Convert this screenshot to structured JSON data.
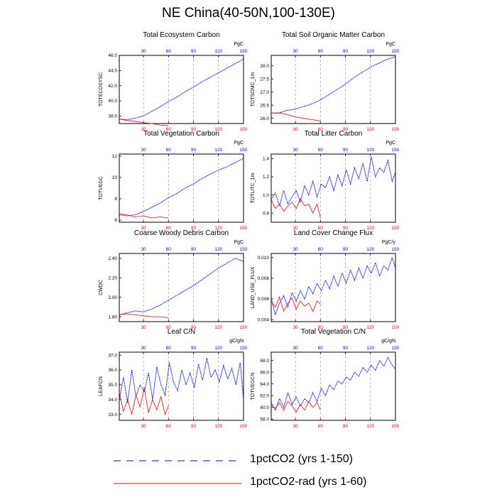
{
  "figure": {
    "title": "NE China(40-50N,100-130E)"
  },
  "colors": {
    "series1": "#0000ff",
    "series2": "#ff0000",
    "grid": "#888888"
  },
  "legend": {
    "entries": [
      {
        "label": "1pctCO2 (yrs 1-150)",
        "style": "dashed",
        "color": "#0000ff"
      },
      {
        "label": "1pctCO2-rad (yrs 1-60)",
        "style": "solid",
        "color": "#ff0000"
      }
    ]
  },
  "chart_data": [
    {
      "type": "line",
      "title": "Total Ecosystem Carbon",
      "ylabel": "TOTECOSYSC",
      "unit": "PgC",
      "xlim": [
        1,
        150
      ],
      "ylim": [
        37,
        46
      ],
      "yticks": [
        "38.0",
        "40.0",
        "42.0",
        "44.0",
        "46.0"
      ],
      "top_ticks": [
        "30",
        "60",
        "90",
        "120",
        "150"
      ],
      "bottom_ticks": [
        "30",
        "60",
        "90",
        "120",
        "150"
      ],
      "series": [
        {
          "x": [
            1,
            10,
            20,
            30,
            40,
            50,
            60,
            70,
            80,
            90,
            100,
            110,
            120,
            130,
            140,
            150
          ],
          "values": [
            37.6,
            37.5,
            37.7,
            38.0,
            38.6,
            39.2,
            39.9,
            40.5,
            41.2,
            41.8,
            42.5,
            43.1,
            43.7,
            44.3,
            44.9,
            45.5
          ]
        },
        {
          "x": [
            1,
            10,
            20,
            30,
            40,
            50,
            60
          ],
          "values": [
            37.6,
            37.4,
            37.3,
            37.1,
            37.0,
            36.8,
            36.7
          ]
        }
      ]
    },
    {
      "type": "line",
      "title": "Total Soil Organic Matter Carbon",
      "ylabel": "TOTSOMC_1m",
      "unit": "PgC",
      "xlim": [
        1,
        150
      ],
      "ylim": [
        25.8,
        28.4
      ],
      "yticks": [
        "26.0",
        "26.5",
        "27.0",
        "27.5",
        "28.0"
      ],
      "top_ticks": [
        "30",
        "60",
        "90",
        "120",
        "150"
      ],
      "bottom_ticks": [
        "30",
        "60",
        "90",
        "120",
        "150"
      ],
      "series": [
        {
          "x": [
            1,
            10,
            20,
            30,
            40,
            50,
            60,
            70,
            80,
            90,
            100,
            110,
            120,
            130,
            140,
            150
          ],
          "values": [
            26.2,
            26.2,
            26.3,
            26.35,
            26.45,
            26.55,
            26.7,
            26.9,
            27.1,
            27.3,
            27.55,
            27.75,
            27.95,
            28.1,
            28.25,
            28.35
          ]
        },
        {
          "x": [
            1,
            10,
            20,
            30,
            40,
            50,
            60
          ],
          "values": [
            26.2,
            26.2,
            26.15,
            26.05,
            26.0,
            25.95,
            25.9
          ]
        }
      ]
    },
    {
      "type": "line",
      "title": "Total Vegetation Carbon",
      "ylabel": "TOTVEGC",
      "unit": "PgC",
      "xlim": [
        1,
        150
      ],
      "ylim": [
        5.8,
        12.2
      ],
      "yticks": [
        "6",
        "8",
        "10",
        "12"
      ],
      "top_ticks": [
        "30",
        "60",
        "90",
        "120",
        "150"
      ],
      "bottom_ticks": [
        "30",
        "60",
        "90",
        "120",
        "150"
      ],
      "series": [
        {
          "x": [
            1,
            10,
            20,
            30,
            40,
            50,
            60,
            70,
            80,
            90,
            100,
            110,
            120,
            130,
            140,
            150
          ],
          "values": [
            6.5,
            6.4,
            6.5,
            6.8,
            7.2,
            7.6,
            8.1,
            8.5,
            9.0,
            9.4,
            9.9,
            10.3,
            10.7,
            11.0,
            11.4,
            11.8
          ]
        },
        {
          "x": [
            1,
            10,
            20,
            30,
            40,
            50,
            60
          ],
          "values": [
            6.6,
            6.5,
            6.3,
            6.4,
            6.2,
            6.3,
            6.2
          ]
        }
      ]
    },
    {
      "type": "line",
      "title": "Total Litter Carbon",
      "ylabel": "TOTLITC_1m",
      "unit": "PgC",
      "xlim": [
        1,
        150
      ],
      "ylim": [
        0.7,
        1.45
      ],
      "yticks": [
        "0.8",
        "1.0",
        "1.2",
        "1.4"
      ],
      "top_ticks": [
        "30",
        "60",
        "90",
        "120",
        "150"
      ],
      "bottom_ticks": [
        "30",
        "60",
        "90",
        "120",
        "150"
      ],
      "series": [
        {
          "x": [
            1,
            6,
            11,
            16,
            21,
            26,
            31,
            36,
            41,
            46,
            51,
            56,
            61,
            66,
            71,
            76,
            81,
            86,
            91,
            96,
            101,
            106,
            111,
            116,
            121,
            126,
            131,
            136,
            141,
            146,
            150
          ],
          "values": [
            0.95,
            1.02,
            0.88,
            1.05,
            0.9,
            0.98,
            1.05,
            0.92,
            1.1,
            1.0,
            1.15,
            0.98,
            1.12,
            1.08,
            1.2,
            1.05,
            1.22,
            1.1,
            1.28,
            1.12,
            1.3,
            1.18,
            1.35,
            1.15,
            1.42,
            1.2,
            1.3,
            1.25,
            1.38,
            1.15,
            1.25
          ]
        },
        {
          "x": [
            1,
            6,
            11,
            16,
            21,
            26,
            31,
            36,
            41,
            46,
            51,
            56,
            60
          ],
          "values": [
            0.95,
            0.85,
            0.9,
            0.82,
            0.88,
            0.92,
            0.85,
            0.96,
            0.88,
            0.9,
            0.8,
            0.9,
            0.75
          ]
        }
      ]
    },
    {
      "type": "line",
      "title": "Coarse Woody Debris Carbon",
      "ylabel": "CWDC",
      "unit": "PgC",
      "xlim": [
        1,
        150
      ],
      "ylim": [
        1.75,
        2.45
      ],
      "yticks": [
        "1.80",
        "2.00",
        "2.20",
        "2.40"
      ],
      "top_ticks": [
        "30",
        "60",
        "90",
        "120",
        "150"
      ],
      "bottom_ticks": [
        "30",
        "60",
        "90",
        "120",
        "150"
      ],
      "series": [
        {
          "x": [
            1,
            10,
            20,
            30,
            40,
            50,
            60,
            70,
            80,
            90,
            100,
            110,
            120,
            130,
            140,
            150
          ],
          "values": [
            1.82,
            1.84,
            1.86,
            1.85,
            1.88,
            1.92,
            1.97,
            2.02,
            2.07,
            2.12,
            2.18,
            2.24,
            2.3,
            2.35,
            2.4,
            2.37
          ]
        },
        {
          "x": [
            1,
            10,
            20,
            30,
            40,
            50,
            60
          ],
          "values": [
            1.82,
            1.83,
            1.82,
            1.81,
            1.8,
            1.8,
            1.79
          ]
        }
      ]
    },
    {
      "type": "line",
      "title": "Land Cover Change Flux",
      "ylabel": "LAND_USE_FLUX",
      "unit": "PgC/y",
      "xlim": [
        1,
        150
      ],
      "ylim": [
        0.0038,
        0.0104
      ],
      "yticks": [
        "0.004",
        "0.006",
        "0.008",
        "0.010"
      ],
      "top_ticks": [
        "30",
        "60",
        "90",
        "120",
        "150"
      ],
      "bottom_ticks": [
        "30",
        "60",
        "90",
        "120",
        "150"
      ],
      "series": [
        {
          "x": [
            1,
            6,
            11,
            16,
            21,
            26,
            31,
            36,
            41,
            46,
            51,
            56,
            61,
            66,
            71,
            76,
            81,
            86,
            91,
            96,
            101,
            106,
            111,
            116,
            121,
            126,
            131,
            136,
            141,
            146,
            150
          ],
          "values": [
            0.006,
            0.0045,
            0.0056,
            0.0063,
            0.0052,
            0.0066,
            0.0058,
            0.0068,
            0.006,
            0.0072,
            0.0065,
            0.0075,
            0.0068,
            0.0078,
            0.007,
            0.0082,
            0.0072,
            0.0085,
            0.0075,
            0.0088,
            0.0078,
            0.009,
            0.008,
            0.0092,
            0.0085,
            0.0095,
            0.0082,
            0.0092,
            0.0088,
            0.01,
            0.009
          ]
        },
        {
          "x": [
            1,
            6,
            11,
            16,
            21,
            26,
            31,
            36,
            41,
            46,
            51,
            56,
            60
          ],
          "values": [
            0.0058,
            0.0052,
            0.0062,
            0.0048,
            0.0056,
            0.0061,
            0.005,
            0.0058,
            0.0053,
            0.0056,
            0.0048,
            0.0058,
            0.0055
          ]
        }
      ]
    },
    {
      "type": "line",
      "title": "Leaf C/N",
      "ylabel": "LEAFCN",
      "unit": "gC/gN",
      "xlim": [
        1,
        150
      ],
      "ylim": [
        32.6,
        37.2
      ],
      "yticks": [
        "33.0",
        "34.0",
        "35.0",
        "36.0",
        "37.0"
      ],
      "top_ticks": [
        "30",
        "60",
        "90",
        "120",
        "150"
      ],
      "bottom_ticks": [
        "30",
        "60",
        "90",
        "120",
        "150"
      ],
      "series": [
        {
          "x": [
            1,
            6,
            11,
            16,
            21,
            26,
            31,
            36,
            41,
            46,
            51,
            56,
            61,
            66,
            71,
            76,
            81,
            86,
            91,
            96,
            101,
            106,
            111,
            116,
            121,
            126,
            131,
            136,
            141,
            146,
            150
          ],
          "values": [
            34.0,
            35.5,
            33.8,
            36.0,
            34.2,
            35.0,
            34.5,
            35.8,
            34.0,
            36.2,
            35.0,
            34.3,
            36.5,
            35.2,
            34.6,
            36.0,
            35.0,
            35.8,
            34.8,
            36.4,
            35.3,
            36.8,
            35.5,
            36.0,
            35.2,
            36.3,
            35.4,
            36.1,
            35.0,
            36.5,
            34.0
          ]
        },
        {
          "x": [
            1,
            6,
            11,
            16,
            21,
            26,
            31,
            36,
            41,
            46,
            51,
            56,
            60
          ],
          "values": [
            34.5,
            33.2,
            34.0,
            33.0,
            34.3,
            33.5,
            34.8,
            33.1,
            34.0,
            33.3,
            34.2,
            33.0,
            33.6
          ]
        }
      ]
    },
    {
      "type": "line",
      "title": "Total Vegetation C/N",
      "ylabel": "TOTVEGCN",
      "unit": "gC/gN",
      "xlim": [
        1,
        150
      ],
      "ylim": [
        57.8,
        69.4
      ],
      "yticks": [
        "58.0",
        "60.0",
        "62.0",
        "64.0",
        "66.0",
        "68.0"
      ],
      "top_ticks": [
        "30",
        "60",
        "90",
        "120",
        "150"
      ],
      "bottom_ticks": [
        "30",
        "60",
        "90",
        "120",
        "150"
      ],
      "series": [
        {
          "x": [
            1,
            6,
            11,
            16,
            21,
            26,
            31,
            36,
            41,
            46,
            51,
            56,
            61,
            66,
            71,
            76,
            81,
            86,
            91,
            96,
            101,
            106,
            111,
            116,
            121,
            126,
            131,
            136,
            141,
            146,
            150
          ],
          "values": [
            60.8,
            59.5,
            61.5,
            60.0,
            62.5,
            60.5,
            61.8,
            60.2,
            61.5,
            60.8,
            62.5,
            61.0,
            63.2,
            62.0,
            63.8,
            63.0,
            64.5,
            64.0,
            65.2,
            64.6,
            66.0,
            65.3,
            66.8,
            66.0,
            67.2,
            66.3,
            68.0,
            67.0,
            68.5,
            67.2,
            66.5
          ]
        },
        {
          "x": [
            1,
            6,
            11,
            16,
            21,
            26,
            31,
            36,
            41,
            46,
            51,
            56,
            60
          ],
          "values": [
            60.5,
            59.8,
            60.8,
            59.5,
            61.0,
            60.2,
            59.2,
            60.5,
            59.5,
            61.0,
            60.0,
            60.8,
            59.6
          ]
        }
      ]
    }
  ]
}
